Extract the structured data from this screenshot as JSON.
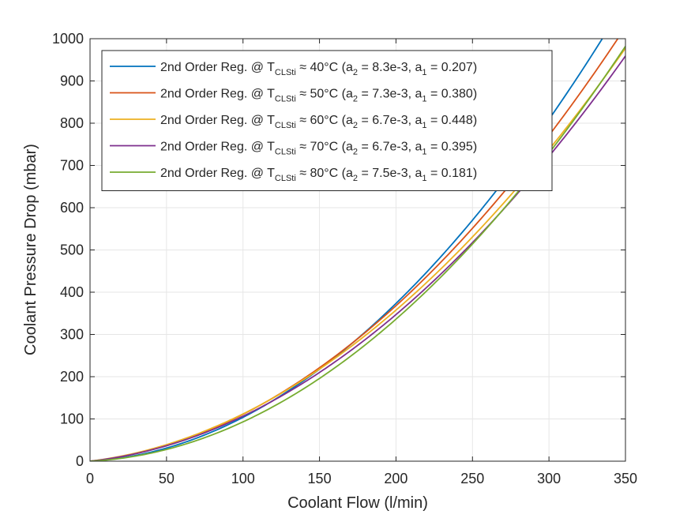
{
  "chart_data": {
    "type": "line",
    "title": "",
    "xlabel": "Coolant Flow (l/min)",
    "ylabel": "Coolant Pressure Drop (mbar)",
    "xlim": [
      0,
      350
    ],
    "ylim": [
      0,
      1000
    ],
    "xticks": [
      0,
      50,
      100,
      150,
      200,
      250,
      300,
      350
    ],
    "yticks": [
      0,
      100,
      200,
      300,
      400,
      500,
      600,
      700,
      800,
      900,
      1000
    ],
    "xtick_labels": [
      "0",
      "50",
      "100",
      "150",
      "200",
      "250",
      "300",
      "350"
    ],
    "ytick_labels": [
      "0",
      "100",
      "200",
      "300",
      "400",
      "500",
      "600",
      "700",
      "800",
      "900",
      "1000"
    ],
    "grid": true,
    "legend_position": "top-left",
    "model": "y = a2*x^2 + a1*x",
    "series": [
      {
        "legend_main": "2nd Order Reg. @ T",
        "legend_sub": "CLSti",
        "legend_temp": " ≈ 40°C (a",
        "legend_a2_sub": "2",
        "legend_a2": " = 8.3e-3, a",
        "legend_a1_sub": "1",
        "legend_a1": " = 0.207)",
        "a2": 0.0083,
        "a1": 0.207,
        "color": "#0072BD"
      },
      {
        "legend_main": "2nd Order Reg. @ T",
        "legend_sub": "CLSti",
        "legend_temp": " ≈ 50°C (a",
        "legend_a2_sub": "2",
        "legend_a2": " = 7.3e-3, a",
        "legend_a1_sub": "1",
        "legend_a1": " = 0.380)",
        "a2": 0.0073,
        "a1": 0.38,
        "color": "#D95319"
      },
      {
        "legend_main": "2nd Order Reg. @ T",
        "legend_sub": "CLSti",
        "legend_temp": " ≈ 60°C (a",
        "legend_a2_sub": "2",
        "legend_a2": " = 6.7e-3, a",
        "legend_a1_sub": "1",
        "legend_a1": " = 0.448)",
        "a2": 0.0067,
        "a1": 0.448,
        "color": "#EDB120"
      },
      {
        "legend_main": "2nd Order Reg. @ T",
        "legend_sub": "CLSti",
        "legend_temp": " ≈ 70°C (a",
        "legend_a2_sub": "2",
        "legend_a2": " = 6.7e-3, a",
        "legend_a1_sub": "1",
        "legend_a1": " = 0.395)",
        "a2": 0.0067,
        "a1": 0.395,
        "color": "#7E2F8E"
      },
      {
        "legend_main": "2nd Order Reg. @ T",
        "legend_sub": "CLSti",
        "legend_temp": " ≈ 80°C (a",
        "legend_a2_sub": "2",
        "legend_a2": " = 7.5e-3, a",
        "legend_a1_sub": "1",
        "legend_a1": " = 0.181)",
        "a2": 0.0075,
        "a1": 0.181,
        "color": "#77AC30"
      }
    ]
  }
}
